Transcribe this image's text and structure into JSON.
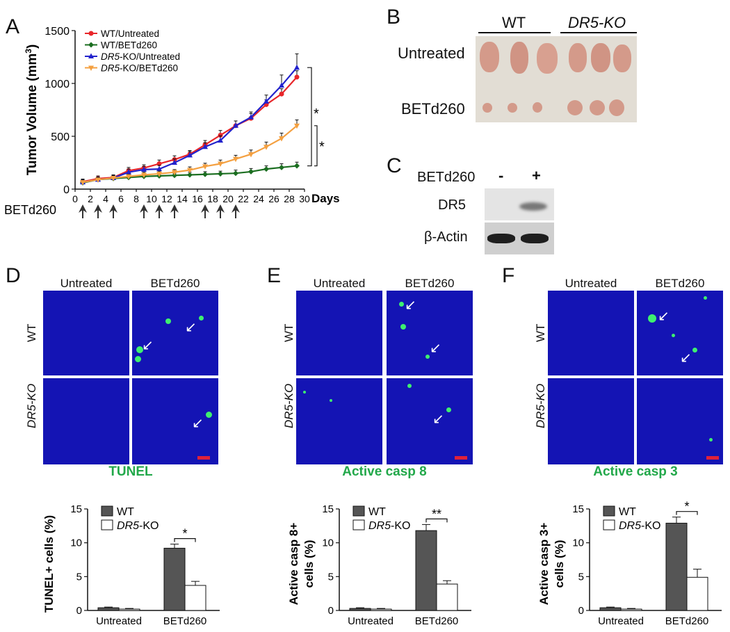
{
  "panels": {
    "a": "A",
    "b": "B",
    "c": "C",
    "d": "D",
    "e": "E",
    "f": "F"
  },
  "chart_data": [
    {
      "id": "A",
      "type": "line",
      "ylabel": "Tumor Volume (mm3)",
      "xlabel": "Days",
      "xlim": [
        0,
        30
      ],
      "ylim": [
        0,
        1500
      ],
      "xticks": [
        0,
        2,
        4,
        6,
        8,
        10,
        12,
        14,
        16,
        18,
        20,
        22,
        24,
        26,
        28,
        30
      ],
      "yticks": [
        0,
        500,
        1000,
        1500
      ],
      "legend_position": "top-left",
      "treatment_label": "BETd260",
      "treatment_days": [
        1,
        3,
        5,
        9,
        11,
        13,
        17,
        19,
        21
      ],
      "significance": [
        "*",
        "*"
      ],
      "series": [
        {
          "name": "WT/Untreated",
          "color": "#e8262a",
          "marker": "circle",
          "x": [
            1,
            3,
            5,
            7,
            9,
            11,
            13,
            15,
            17,
            19,
            21,
            23,
            25,
            27,
            29
          ],
          "y": [
            70,
            100,
            110,
            175,
            200,
            240,
            280,
            330,
            420,
            510,
            600,
            670,
            800,
            900,
            1060
          ],
          "err": [
            25,
            25,
            25,
            30,
            30,
            35,
            35,
            35,
            40,
            45,
            45,
            45,
            45,
            50,
            60
          ]
        },
        {
          "name": "WT/BETd260",
          "color": "#1b6e20",
          "marker": "diamond",
          "x": [
            1,
            3,
            5,
            7,
            9,
            11,
            13,
            15,
            17,
            19,
            21,
            23,
            25,
            27,
            29
          ],
          "y": [
            60,
            90,
            100,
            110,
            120,
            125,
            130,
            135,
            140,
            145,
            150,
            165,
            190,
            205,
            220
          ],
          "err": [
            20,
            20,
            20,
            20,
            20,
            20,
            20,
            25,
            25,
            25,
            30,
            30,
            30,
            35,
            35
          ]
        },
        {
          "name": "DR5-KO/Untreated",
          "color": "#2222cc",
          "marker": "triangle",
          "x": [
            1,
            3,
            5,
            7,
            9,
            11,
            13,
            15,
            17,
            19,
            21,
            23,
            25,
            27,
            29
          ],
          "y": [
            65,
            90,
            105,
            160,
            185,
            190,
            250,
            320,
            400,
            460,
            600,
            680,
            830,
            980,
            1150
          ],
          "err": [
            25,
            25,
            25,
            30,
            30,
            35,
            35,
            35,
            40,
            45,
            45,
            50,
            60,
            100,
            130
          ]
        },
        {
          "name": "DR5-KO/BETd260",
          "color": "#f4a040",
          "marker": "triangle-down",
          "x": [
            1,
            3,
            5,
            7,
            9,
            11,
            13,
            15,
            17,
            19,
            21,
            23,
            25,
            27,
            29
          ],
          "y": [
            65,
            90,
            105,
            120,
            135,
            145,
            160,
            180,
            215,
            240,
            285,
            330,
            400,
            480,
            600
          ],
          "err": [
            20,
            20,
            20,
            20,
            25,
            25,
            25,
            30,
            30,
            35,
            35,
            40,
            45,
            50,
            55
          ]
        }
      ]
    },
    {
      "id": "D",
      "type": "bar",
      "ylabel": "TUNEL+ cells (%)",
      "categories": [
        "Untreated",
        "BETd260"
      ],
      "ylim": [
        0,
        15
      ],
      "yticks": [
        0,
        5,
        10,
        15
      ],
      "series": [
        {
          "name": "WT",
          "color": "#555555",
          "values": [
            0.4,
            9.2
          ],
          "err": [
            0.1,
            0.6
          ]
        },
        {
          "name": "DR5-KO",
          "color": "#ffffff",
          "values": [
            0.2,
            3.7
          ],
          "err": [
            0.1,
            0.6
          ]
        }
      ],
      "significance": "*"
    },
    {
      "id": "E",
      "type": "bar",
      "ylabel": "Active casp 8+ cells (%)",
      "categories": [
        "Untreated",
        "BETd260"
      ],
      "ylim": [
        0,
        15
      ],
      "yticks": [
        0,
        5,
        10,
        15
      ],
      "series": [
        {
          "name": "WT",
          "color": "#555555",
          "values": [
            0.3,
            11.8
          ],
          "err": [
            0.1,
            0.9
          ]
        },
        {
          "name": "DR5-KO",
          "color": "#ffffff",
          "values": [
            0.2,
            3.9
          ],
          "err": [
            0.1,
            0.5
          ]
        }
      ],
      "significance": "**"
    },
    {
      "id": "F",
      "type": "bar",
      "ylabel": "Active casp 3+ cells (%)",
      "categories": [
        "Untreated",
        "BETd260"
      ],
      "ylim": [
        0,
        15
      ],
      "yticks": [
        0,
        5,
        10,
        15
      ],
      "series": [
        {
          "name": "WT",
          "color": "#555555",
          "values": [
            0.4,
            12.9
          ],
          "err": [
            0.1,
            0.9
          ]
        },
        {
          "name": "DR5-KO",
          "color": "#ffffff",
          "values": [
            0.2,
            4.9
          ],
          "err": [
            0.1,
            1.2
          ]
        }
      ],
      "significance": "*"
    }
  ],
  "panel_b": {
    "groups": [
      "WT",
      "DR5-KO"
    ],
    "rows": [
      "Untreated",
      "BETd260"
    ]
  },
  "panel_c": {
    "treatment": "BETd260",
    "lanes": [
      "-",
      "+"
    ],
    "bands": [
      "DR5",
      "β-Actin"
    ]
  },
  "micro": {
    "cols": [
      "Untreated",
      "BETd260"
    ],
    "rows": [
      "WT",
      "DR5-KO"
    ],
    "stains": {
      "d": "TUNEL",
      "e": "Active casp 8",
      "f": "Active casp 3"
    }
  }
}
